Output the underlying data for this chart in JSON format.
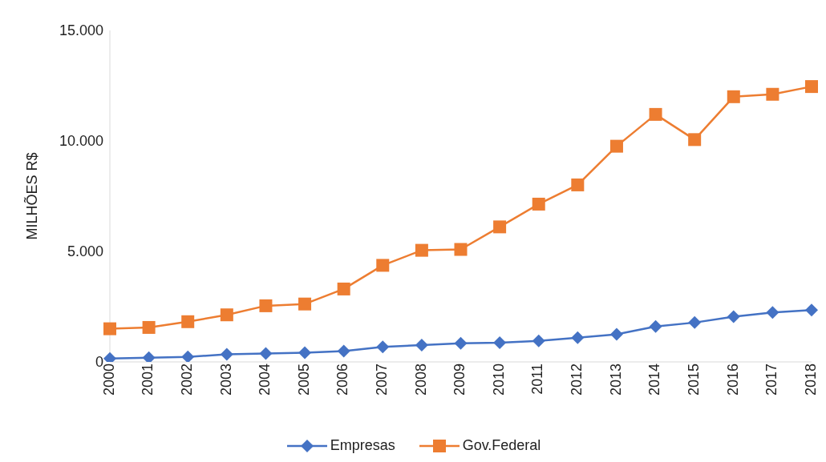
{
  "chart_data": {
    "type": "line",
    "ylabel": "MILHÕES R$",
    "categories": [
      "2000",
      "2001",
      "2002",
      "2003",
      "2004",
      "2005",
      "2006",
      "2007",
      "2008",
      "2009",
      "2010",
      "2011",
      "2012",
      "2013",
      "2014",
      "2015",
      "2016",
      "2017",
      "2018"
    ],
    "series": [
      {
        "name": "Empresas",
        "color": "#4472c4",
        "marker": "diamond",
        "values": [
          150,
          190,
          230,
          340,
          380,
          420,
          490,
          680,
          760,
          840,
          870,
          950,
          1100,
          1250,
          1600,
          1780,
          2050,
          2240,
          2350
        ]
      },
      {
        "name": "Gov.Federal",
        "color": "#ed7d31",
        "marker": "square",
        "values": [
          1500,
          1560,
          1820,
          2130,
          2540,
          2620,
          3300,
          4370,
          5050,
          5090,
          6110,
          7140,
          8010,
          9760,
          11200,
          10060,
          12000,
          12110,
          12460
        ]
      }
    ],
    "ylim": [
      0,
      15000
    ],
    "yticks": [
      {
        "value": 0,
        "label": "0"
      },
      {
        "value": 5000,
        "label": "5.000"
      },
      {
        "value": 10000,
        "label": "10.000"
      },
      {
        "value": 15000,
        "label": "15.000"
      }
    ],
    "grid": false,
    "legend": "bottom",
    "line_style": "solid"
  }
}
